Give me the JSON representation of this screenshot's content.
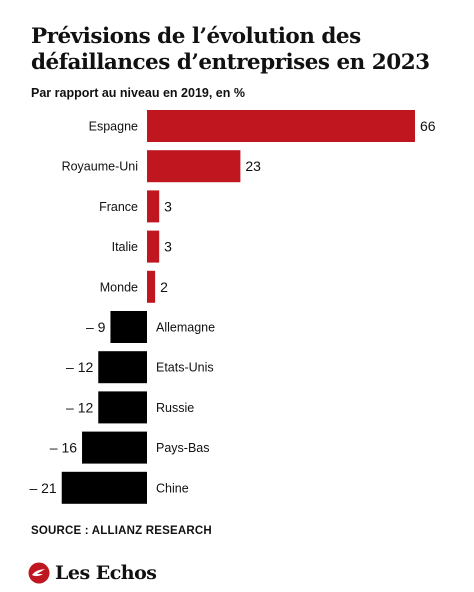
{
  "header": {
    "title": "Prévisions de l’évolution des défaillances d’entreprises en 2023",
    "subtitle": "Par rapport au niveau en 2019, en %"
  },
  "footer": {
    "source": "SOURCE : ALLIANZ RESEARCH",
    "logo_text": "Les Echos"
  },
  "colors": {
    "positive": "#c0161f",
    "negative": "#000000",
    "text": "#111111"
  },
  "chart_data": {
    "type": "bar",
    "orientation": "horizontal",
    "title": "Prévisions de l’évolution des défaillances d’entreprises en 2023",
    "subtitle": "Par rapport au niveau en 2019, en %",
    "xlabel": "",
    "ylabel": "",
    "grid": false,
    "legend": "none",
    "xlim": [
      -21,
      66
    ],
    "categories": [
      "Espagne",
      "Royaume-Uni",
      "France",
      "Italie",
      "Monde",
      "Allemagne",
      "Etats-Unis",
      "Russie",
      "Pays-Bas",
      "Chine"
    ],
    "values": [
      66,
      23,
      3,
      3,
      2,
      -9,
      -12,
      -12,
      -16,
      -21
    ],
    "value_labels": [
      "66",
      "23",
      "3",
      "3",
      "2",
      "– 9",
      "– 12",
      "– 12",
      "– 16",
      "– 21"
    ]
  }
}
